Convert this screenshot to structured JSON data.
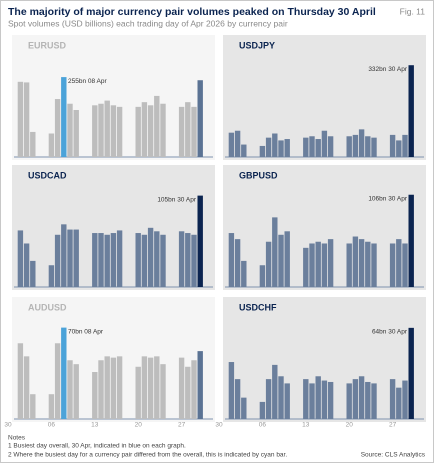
{
  "header": {
    "title": "The majority of major currency pair volumes peaked on Thursday 30 April",
    "subtitle": "Spot volumes (USD billions) each trading day of Apr 2026 by currency pair",
    "figure": "Fig. 11"
  },
  "notes": {
    "heading": "Notes",
    "lines": [
      "1 Busiest day overall, 30 Apr, indicated in blue on each graph.",
      "2 Where the busiest day for a currency pair differed from the overall, this is indicated by cyan bar."
    ],
    "source": "Source: CLS Analytics"
  },
  "chart_data": [
    {
      "type": "bar",
      "title": "EURUSD",
      "annotation": "255bn 08 Apr",
      "values": [
        null,
        null,
        240,
        238,
        80,
        null,
        null,
        75,
        185,
        255,
        170,
        150,
        null,
        null,
        165,
        170,
        180,
        165,
        160,
        null,
        null,
        160,
        175,
        165,
        195,
        170,
        null,
        null,
        160,
        175,
        160,
        245
      ],
      "ylim": [
        0,
        300
      ],
      "color": "#bdbdbd",
      "highlight_color": "#4ba3d9",
      "last_color": "#5b7394",
      "background": "#f5f5f5",
      "title_color": "#b5b5b5"
    },
    {
      "type": "bar",
      "title": "USDJPY",
      "annotation": "332bn 30 Apr",
      "values": [
        null,
        null,
        88,
        95,
        45,
        null,
        null,
        40,
        70,
        85,
        60,
        65,
        null,
        null,
        70,
        75,
        65,
        95,
        75,
        null,
        null,
        75,
        80,
        100,
        75,
        70,
        null,
        null,
        80,
        60,
        80,
        332
      ],
      "ylim": [
        0,
        340
      ],
      "color": "#6b7f9c",
      "highlight_color": "#0b2450",
      "last_color": "#0b2450",
      "background": "#e6e6e6",
      "title_color": "#0b2450"
    },
    {
      "type": "bar",
      "title": "USDCAD",
      "annotation": "105bn 30 Apr",
      "values": [
        null,
        null,
        65,
        50,
        30,
        null,
        null,
        25,
        60,
        72,
        66,
        66,
        null,
        null,
        62,
        62,
        60,
        62,
        65,
        null,
        null,
        62,
        60,
        68,
        64,
        60,
        null,
        null,
        64,
        62,
        60,
        105
      ],
      "ylim": [
        0,
        108
      ],
      "color": "#6b7f9c",
      "highlight_color": "#0b2450",
      "last_color": "#0b2450",
      "background": "#e6e6e6",
      "title_color": "#0b2450"
    },
    {
      "type": "bar",
      "title": "GBPUSD",
      "annotation": "106bn 30 Apr",
      "values": [
        null,
        null,
        62,
        55,
        30,
        null,
        null,
        25,
        52,
        80,
        60,
        64,
        null,
        null,
        45,
        50,
        52,
        50,
        55,
        null,
        null,
        50,
        58,
        55,
        52,
        50,
        null,
        null,
        50,
        55,
        50,
        106
      ],
      "ylim": [
        0,
        108
      ],
      "color": "#6b7f9c",
      "highlight_color": "#0b2450",
      "last_color": "#0b2450",
      "background": "#e6e6e6",
      "title_color": "#0b2450"
    },
    {
      "type": "bar",
      "title": "AUDUSD",
      "annotation": "70bn 08 Apr",
      "categories": [
        "30",
        null,
        null,
        null,
        null,
        null,
        null,
        "06",
        null,
        null,
        null,
        null,
        null,
        null,
        "13",
        null,
        null,
        null,
        null,
        null,
        null,
        "20",
        null,
        null,
        null,
        null,
        null,
        null,
        "27",
        null,
        null,
        null
      ],
      "values": [
        null,
        null,
        58,
        48,
        19,
        null,
        null,
        19,
        58,
        70,
        45,
        42,
        null,
        null,
        36,
        45,
        48,
        47,
        48,
        null,
        null,
        40,
        48,
        47,
        48,
        42,
        null,
        null,
        47,
        40,
        45,
        52
      ],
      "ylim": [
        0,
        72
      ],
      "color": "#bdbdbd",
      "highlight_color": "#4ba3d9",
      "last_color": "#5b7394",
      "background": "#f5f5f5",
      "title_color": "#b5b5b5"
    },
    {
      "type": "bar",
      "title": "USDCHF",
      "annotation": "64bn 30 Apr",
      "categories": [
        "30",
        null,
        null,
        null,
        null,
        null,
        null,
        "06",
        null,
        null,
        null,
        null,
        null,
        null,
        "13",
        null,
        null,
        null,
        null,
        null,
        null,
        "20",
        null,
        null,
        null,
        null,
        null,
        null,
        "27",
        null,
        null,
        null
      ],
      "values": [
        null,
        null,
        40,
        28,
        15,
        null,
        null,
        12,
        28,
        38,
        30,
        25,
        null,
        null,
        28,
        25,
        30,
        27,
        26,
        null,
        null,
        25,
        28,
        30,
        26,
        25,
        null,
        null,
        28,
        22,
        27,
        64
      ],
      "ylim": [
        0,
        66
      ],
      "color": "#6b7f9c",
      "highlight_color": "#0b2450",
      "last_color": "#0b2450",
      "background": "#e6e6e6",
      "title_color": "#0b2450"
    }
  ]
}
